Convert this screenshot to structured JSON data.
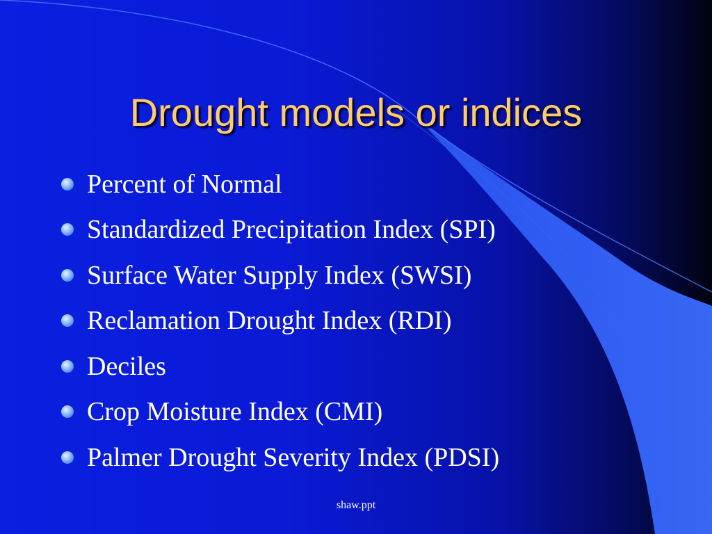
{
  "slide": {
    "title": "Drought models or indices",
    "bullets": [
      "Percent of Normal",
      "Standardized Precipitation Index (SPI)",
      "Surface Water Supply Index (SWSI)",
      "Reclamation Drought Index (RDI)",
      "Deciles",
      "Crop Moisture Index (CMI)",
      "Palmer Drought Severity Index (PDSI)"
    ],
    "footer": "shaw.ppt"
  },
  "colors": {
    "background": "#0a1fe0",
    "title_text": "#ffcc66",
    "body_text": "#ffffff",
    "decor_shape": "#3366ff",
    "bullet": "#9cc4ff"
  }
}
